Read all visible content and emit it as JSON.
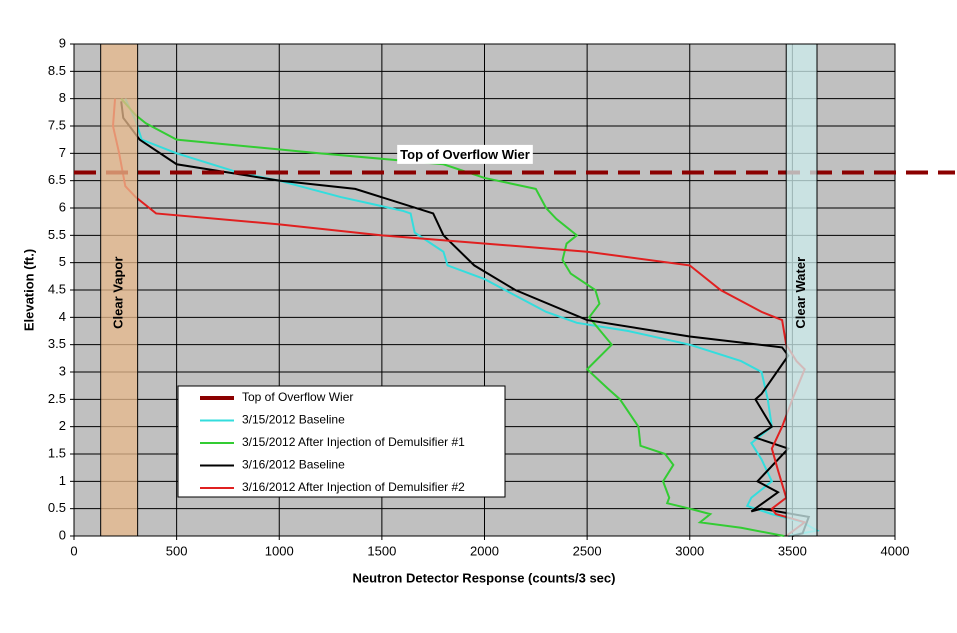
{
  "chart_data": {
    "type": "line",
    "x_label": "Neutron Detector Response (counts/3 sec)",
    "y_label": "Elevation (ft.)",
    "xlim": [
      0,
      4000
    ],
    "ylim": [
      0,
      9
    ],
    "xticks": [
      0,
      500,
      1000,
      1500,
      2000,
      2500,
      3000,
      3500,
      4000
    ],
    "yticks": [
      0,
      0.5,
      1,
      1.5,
      2,
      2.5,
      3,
      3.5,
      4,
      4.5,
      5,
      5.5,
      6,
      6.5,
      7,
      7.5,
      8,
      8.5,
      9
    ],
    "grid": true,
    "background": "#c0c0c0",
    "legend": "lower-left",
    "reference_line": {
      "name": "Top of Overflow Wier",
      "color": "#8b0000",
      "value": 6.65,
      "annotation": "Top of Overflow Wier"
    },
    "bands": [
      {
        "label": "Clear Vapor",
        "range": [
          130,
          310
        ],
        "color": "#e8b98c"
      },
      {
        "label": "Clear Water",
        "range": [
          3470,
          3620
        ],
        "color": "#cdeeee"
      }
    ],
    "series": [
      {
        "name": "3/15/2012 Baseline",
        "color": "#33dddd",
        "x": [
          250,
          300,
          330,
          500,
          800,
          1000,
          1300,
          1600,
          1640,
          1660,
          1800,
          1820,
          2000,
          2150,
          2300,
          2450,
          2700,
          3000,
          3250,
          3350,
          3380,
          3400,
          3300,
          3350,
          3400,
          3300,
          3280,
          3400,
          3550,
          3620,
          3480
        ],
        "values": [
          8.0,
          7.6,
          7.25,
          7.0,
          6.65,
          6.5,
          6.2,
          5.95,
          5.9,
          5.55,
          5.2,
          4.95,
          4.7,
          4.4,
          4.1,
          3.9,
          3.75,
          3.5,
          3.2,
          3.0,
          2.5,
          2.0,
          1.7,
          1.4,
          1.0,
          0.7,
          0.55,
          0.4,
          0.25,
          0.1,
          0.0
        ]
      },
      {
        "name": "3/15/2012 After Injection of Demulsifier #1",
        "color": "#33cc33",
        "x": [
          230,
          300,
          350,
          500,
          1200,
          1800,
          2000,
          2250,
          2300,
          2350,
          2450,
          2400,
          2380,
          2420,
          2540,
          2560,
          2510,
          2620,
          2500,
          2600,
          2660,
          2750,
          2760,
          2880,
          2920,
          2870,
          2900,
          2890,
          3000,
          3100,
          3050,
          3250,
          3460
        ],
        "values": [
          8.0,
          7.7,
          7.55,
          7.25,
          7.0,
          6.8,
          6.55,
          6.35,
          6.0,
          5.8,
          5.5,
          5.35,
          5.05,
          4.8,
          4.5,
          4.25,
          4.0,
          3.5,
          3.05,
          2.7,
          2.5,
          2.0,
          1.65,
          1.5,
          1.3,
          1.0,
          0.7,
          0.6,
          0.5,
          0.4,
          0.25,
          0.15,
          0.0
        ]
      },
      {
        "name": "3/16/2012 Baseline",
        "color": "#000000",
        "x": [
          230,
          240,
          320,
          500,
          1000,
          1370,
          1750,
          1800,
          1950,
          2150,
          2500,
          3000,
          3450,
          3480,
          3350,
          3320,
          3400,
          3320,
          3480,
          3330,
          3430,
          3300,
          3350,
          3580,
          3550,
          3500
        ],
        "values": [
          7.95,
          7.65,
          7.25,
          6.8,
          6.5,
          6.35,
          5.9,
          5.5,
          4.95,
          4.5,
          3.95,
          3.65,
          3.45,
          3.3,
          2.6,
          2.5,
          2.0,
          1.8,
          1.6,
          1.0,
          0.8,
          0.45,
          0.5,
          0.35,
          0.05,
          0.0
        ]
      },
      {
        "name": "3/16/2012 After Injection of Demulsifier #2",
        "color": "#e02020",
        "x": [
          200,
          190,
          220,
          250,
          300,
          400,
          1000,
          1500,
          2500,
          3000,
          3150,
          3350,
          3450,
          3470,
          3520,
          3560,
          3500,
          3450,
          3400,
          3430,
          3470,
          3400,
          3420,
          3560,
          3470
        ],
        "values": [
          8.0,
          7.5,
          7.0,
          6.4,
          6.2,
          5.9,
          5.7,
          5.5,
          5.2,
          4.95,
          4.5,
          4.1,
          3.95,
          3.5,
          3.2,
          3.05,
          2.5,
          2.0,
          1.6,
          1.2,
          0.7,
          0.5,
          0.4,
          0.25,
          0.0
        ]
      }
    ]
  }
}
